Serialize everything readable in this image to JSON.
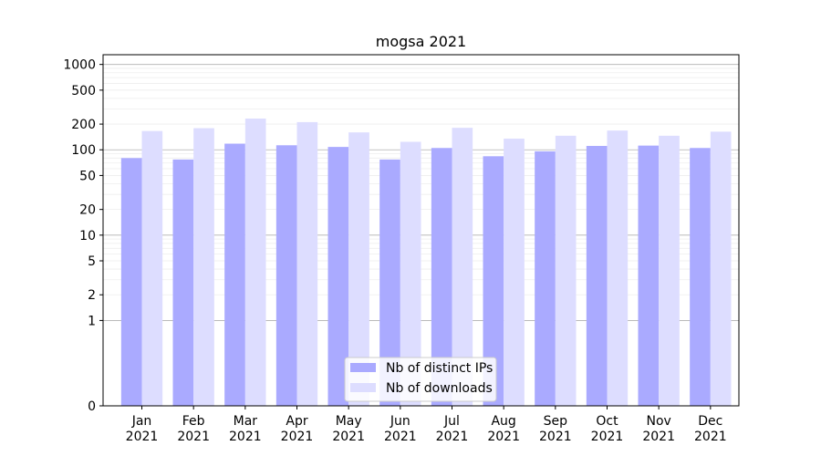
{
  "chart_data": {
    "type": "bar",
    "title": "mogsa 2021",
    "xlabel": "",
    "ylabel": "",
    "y_scale": "symlog",
    "y_ticks": [
      0,
      1,
      2,
      5,
      10,
      20,
      50,
      100,
      200,
      500,
      1000
    ],
    "ylim": [
      0,
      1300
    ],
    "categories": [
      "Jan\n2021",
      "Feb\n2021",
      "Mar\n2021",
      "Apr\n2021",
      "May\n2021",
      "Jun\n2021",
      "Jul\n2021",
      "Aug\n2021",
      "Sep\n2021",
      "Oct\n2021",
      "Nov\n2021",
      "Dec\n2021"
    ],
    "series": [
      {
        "name": "Nb of distinct IPs",
        "color": "#aaaaff",
        "values": [
          80,
          77,
          118,
          113,
          108,
          77,
          105,
          84,
          96,
          111,
          112,
          105
        ]
      },
      {
        "name": "Nb of downloads",
        "color": "#ddddff",
        "values": [
          166,
          179,
          232,
          211,
          160,
          124,
          181,
          135,
          146,
          168,
          146,
          163
        ]
      }
    ],
    "grid": true,
    "legend_position": "bottom-center"
  }
}
